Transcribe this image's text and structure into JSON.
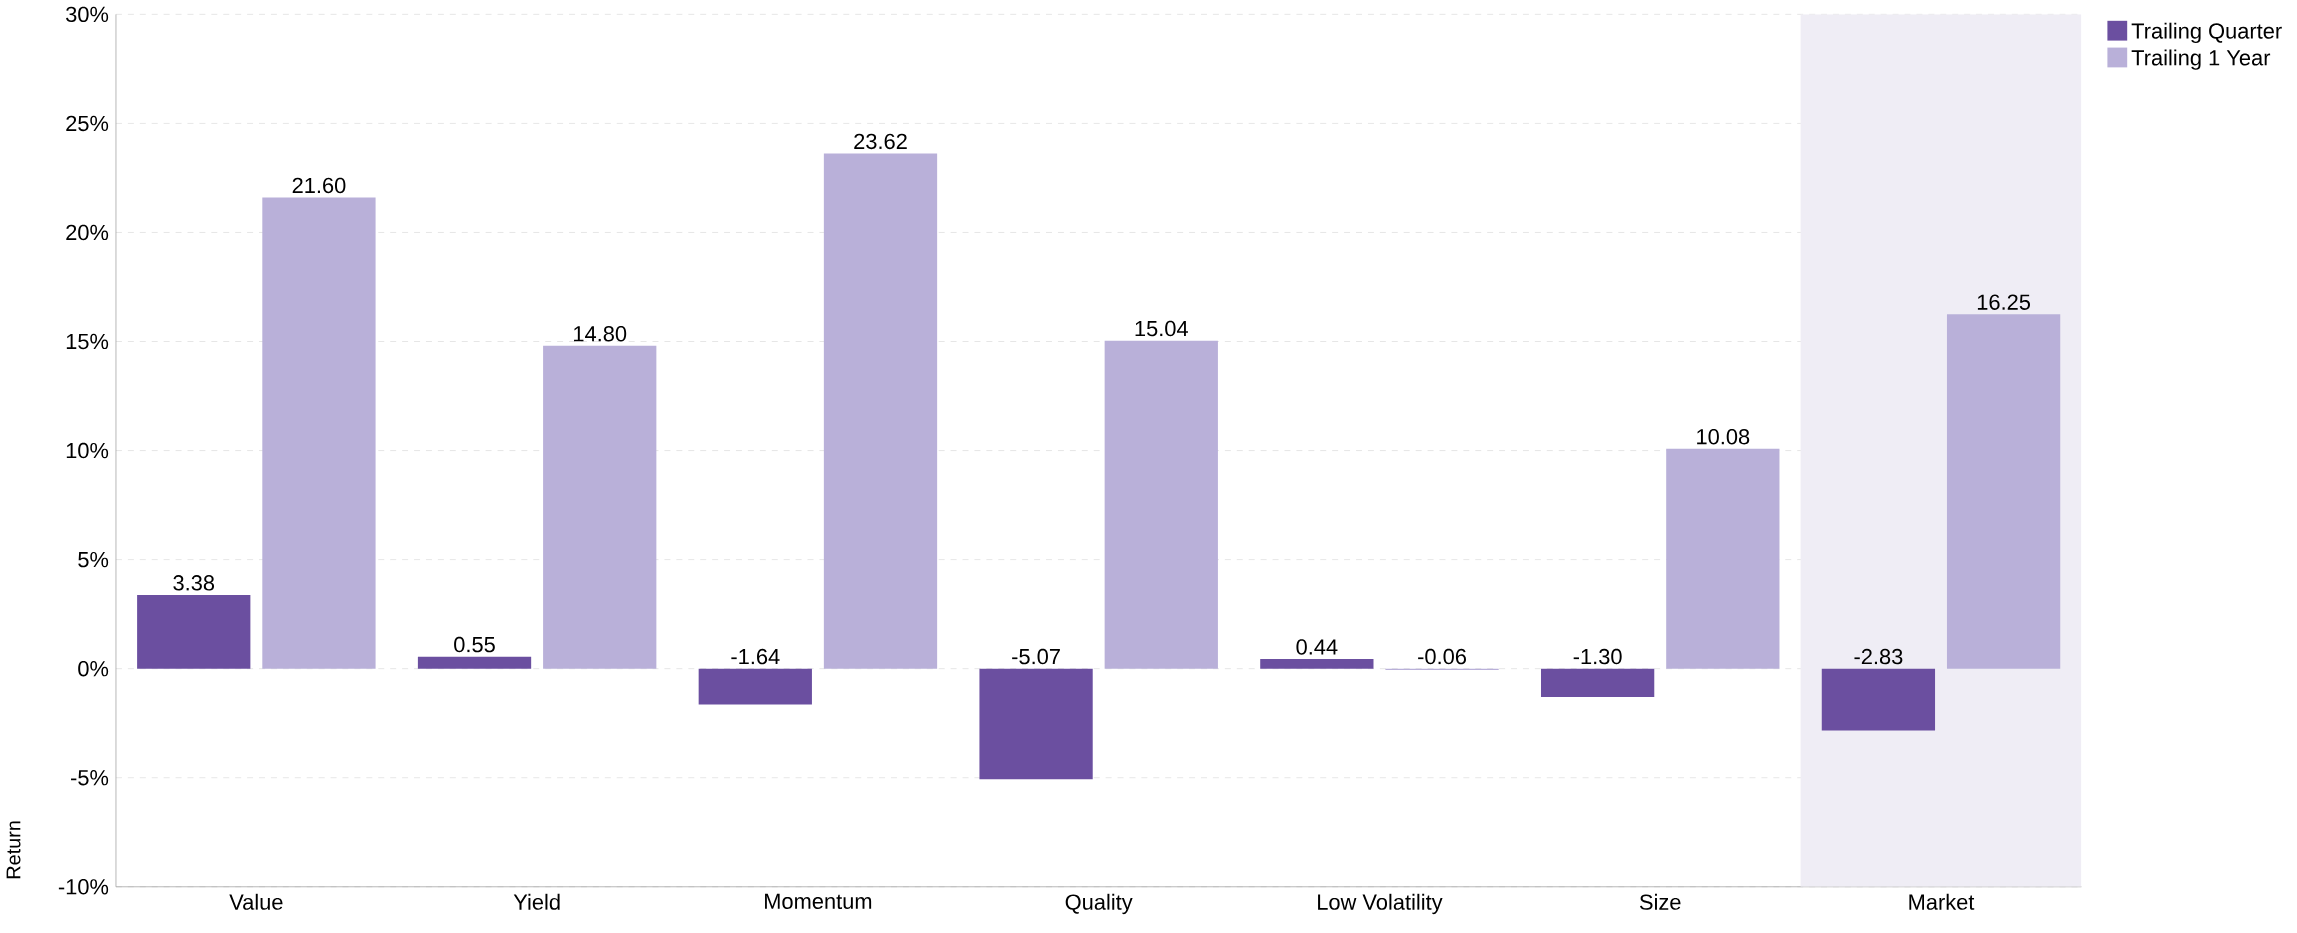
{
  "chart_data": {
    "type": "bar",
    "ylabel": "Return",
    "categories": [
      "Value",
      "Yield",
      "Momentum",
      "Quality",
      "Low Volatility",
      "Size",
      "Market"
    ],
    "series": [
      {
        "name": "Trailing Quarter",
        "color": "#6b4fa0",
        "values": [
          3.38,
          0.55,
          -1.64,
          -5.07,
          0.44,
          -1.3,
          -2.83
        ],
        "value_labels": [
          "3.38",
          "0.55",
          "-1.64",
          "-5.07",
          "0.44",
          "-1.30",
          "-2.83"
        ]
      },
      {
        "name": "Trailing 1 Year",
        "color": "#b9b0d9",
        "values": [
          21.6,
          14.8,
          23.62,
          15.04,
          -0.06,
          10.08,
          16.25
        ],
        "value_labels": [
          "21.60",
          "14.80",
          "23.62",
          "15.04",
          "-0.06",
          "10.08",
          "16.25"
        ]
      }
    ],
    "ylim": [
      -10,
      30
    ],
    "yticks": [
      {
        "value": -10,
        "label": "-10%"
      },
      {
        "value": -5,
        "label": "-5%"
      },
      {
        "value": 0,
        "label": "0%"
      },
      {
        "value": 5,
        "label": "5%"
      },
      {
        "value": 10,
        "label": "10%"
      },
      {
        "value": 15,
        "label": "15%"
      },
      {
        "value": 20,
        "label": "20%"
      },
      {
        "value": 25,
        "label": "25%"
      },
      {
        "value": 30,
        "label": "30%"
      }
    ],
    "bands": [
      {
        "axis": "x",
        "from": "Market",
        "to": "Market",
        "color": "#efedf5"
      }
    ],
    "grid": "y",
    "legend": "top right"
  }
}
